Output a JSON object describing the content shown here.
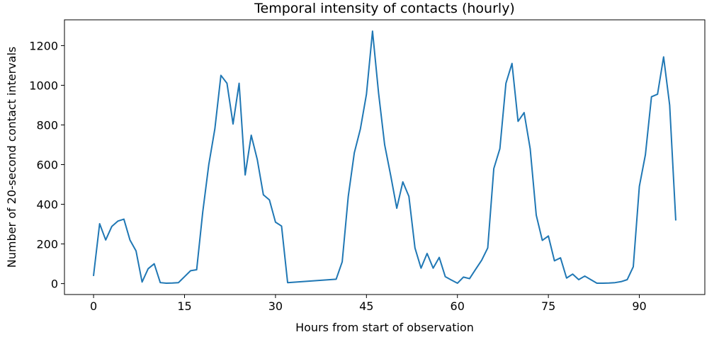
{
  "chart_data": {
    "type": "line",
    "title": "Temporal intensity of contacts (hourly)",
    "xlabel": "Hours from start of observation",
    "ylabel": "Number of 20-second contact intervals",
    "xlim": [
      -4.8,
      100.8
    ],
    "ylim": [
      -55,
      1330
    ],
    "xticks": [
      0,
      15,
      30,
      45,
      60,
      75,
      90
    ],
    "yticks": [
      0,
      200,
      400,
      600,
      800,
      1000,
      1200
    ],
    "grid": false,
    "legend": "none",
    "series": [
      {
        "color": "#1f77b4",
        "x": [
          0,
          1,
          2,
          3,
          4,
          5,
          6,
          7,
          8,
          9,
          10,
          11,
          12,
          13,
          14,
          15,
          16,
          17,
          18,
          19,
          20,
          21,
          22,
          23,
          24,
          25,
          26,
          27,
          28,
          29,
          30,
          31,
          32,
          40,
          41,
          42,
          43,
          44,
          45,
          46,
          47,
          48,
          49,
          50,
          51,
          52,
          53,
          54,
          55,
          56,
          57,
          58,
          59,
          60,
          61,
          62,
          63,
          64,
          65,
          66,
          67,
          68,
          69,
          70,
          71,
          72,
          73,
          74,
          75,
          76,
          77,
          78,
          79,
          80,
          81,
          82,
          83,
          84,
          85,
          86,
          87,
          88,
          89,
          90,
          91,
          92,
          93,
          94,
          95,
          96
        ],
        "y": [
          42,
          302,
          220,
          288,
          315,
          325,
          220,
          165,
          8,
          75,
          100,
          5,
          2,
          3,
          5,
          35,
          65,
          70,
          360,
          600,
          780,
          1050,
          1010,
          805,
          1010,
          548,
          748,
          625,
          448,
          422,
          310,
          290,
          5,
          22,
          110,
          440,
          660,
          780,
          955,
          1273,
          960,
          700,
          545,
          380,
          513,
          440,
          180,
          78,
          152,
          78,
          132,
          35,
          18,
          2,
          33,
          25,
          72,
          118,
          180,
          580,
          680,
          1010,
          1110,
          818,
          862,
          680,
          345,
          218,
          240,
          115,
          130,
          28,
          48,
          20,
          38,
          20,
          2,
          2,
          3,
          5,
          10,
          20,
          85,
          490,
          650,
          942,
          955,
          1143,
          900,
          322
        ]
      }
    ]
  }
}
